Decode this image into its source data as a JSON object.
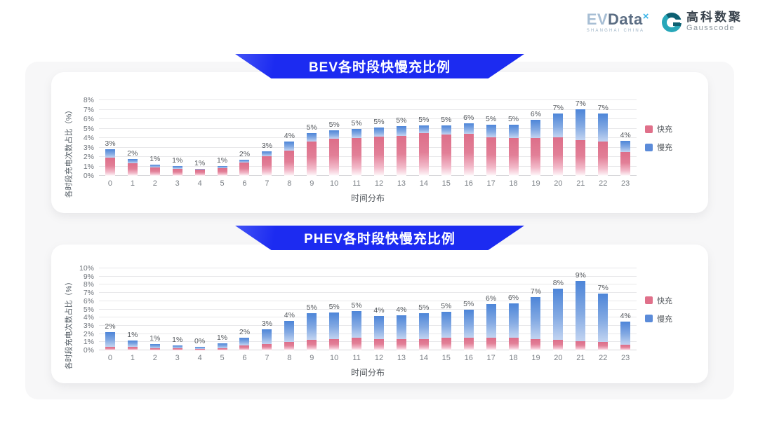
{
  "logo": {
    "evdata_ev": "EV",
    "evdata_data": "Data",
    "evdata_x": "×",
    "evdata_city": "SHANGHAI CHINA",
    "gauss_cn": "高科数聚",
    "gauss_en": "Gausscode"
  },
  "colors": {
    "banner_blue": "#1c2bf1",
    "fast_pink": "#e0708a",
    "slow_blue": "#5b8bd9",
    "panel_gray": "#f7f7f8"
  },
  "chart_data": [
    {
      "type": "bar",
      "stacked": true,
      "title": "BEV各时段快慢充比例",
      "xlabel": "时间分布",
      "ylabel": "各时段充电次数占比（%）",
      "ymax": 8,
      "ytick_suffix": "%",
      "grid": true,
      "legend_position": "right",
      "categories": [
        "0",
        "1",
        "2",
        "3",
        "4",
        "5",
        "6",
        "7",
        "8",
        "9",
        "10",
        "11",
        "12",
        "13",
        "14",
        "15",
        "16",
        "17",
        "18",
        "19",
        "20",
        "21",
        "22",
        "23"
      ],
      "series": [
        {
          "name": "快充",
          "color": "#e0708a",
          "values": [
            1.9,
            1.3,
            0.9,
            0.75,
            0.65,
            0.8,
            1.4,
            2.1,
            2.7,
            3.6,
            3.9,
            4.0,
            4.15,
            4.25,
            4.5,
            4.4,
            4.45,
            4.05,
            4.0,
            4.0,
            4.1,
            3.9,
            3.6,
            2.5
          ]
        },
        {
          "name": "慢充",
          "color": "#5b8bd9",
          "values": [
            0.9,
            0.45,
            0.3,
            0.27,
            0.12,
            0.27,
            0.3,
            0.5,
            0.9,
            0.9,
            0.95,
            0.95,
            0.95,
            1.0,
            0.85,
            0.95,
            1.1,
            1.35,
            1.4,
            1.9,
            2.5,
            3.3,
            3.0,
            1.2
          ]
        }
      ],
      "total_labels": [
        "3%",
        "2%",
        "1%",
        "1%",
        "1%",
        "1%",
        "2%",
        "3%",
        "4%",
        "5%",
        "5%",
        "5%",
        "5%",
        "5%",
        "5%",
        "5%",
        "6%",
        "5%",
        "5%",
        "6%",
        "7%",
        "7%",
        "7%",
        "4%"
      ]
    },
    {
      "type": "bar",
      "stacked": true,
      "title": "PHEV各时段快慢充比例",
      "xlabel": "时间分布",
      "ylabel": "各时段充电次数占比（%）",
      "ymax": 10,
      "ytick_suffix": "%",
      "grid": true,
      "legend_position": "right",
      "categories": [
        "0",
        "1",
        "2",
        "3",
        "4",
        "5",
        "6",
        "7",
        "8",
        "9",
        "10",
        "11",
        "12",
        "13",
        "14",
        "15",
        "16",
        "17",
        "18",
        "19",
        "20",
        "21",
        "22",
        "23"
      ],
      "series": [
        {
          "name": "快充",
          "color": "#e0708a",
          "values": [
            0.45,
            0.4,
            0.3,
            0.25,
            0.2,
            0.3,
            0.6,
            0.8,
            1.0,
            1.3,
            1.4,
            1.5,
            1.4,
            1.4,
            1.4,
            1.5,
            1.5,
            1.5,
            1.5,
            1.4,
            1.3,
            1.1,
            1.0,
            0.7
          ]
        },
        {
          "name": "慢充",
          "color": "#5b8bd9",
          "values": [
            1.75,
            0.8,
            0.5,
            0.35,
            0.25,
            0.55,
            0.9,
            1.8,
            2.6,
            3.2,
            3.2,
            3.3,
            2.8,
            2.9,
            3.1,
            3.2,
            3.5,
            4.1,
            4.2,
            5.1,
            6.2,
            7.4,
            5.9,
            2.8
          ]
        }
      ],
      "total_labels": [
        "2%",
        "1%",
        "1%",
        "1%",
        "0%",
        "1%",
        "2%",
        "3%",
        "4%",
        "5%",
        "5%",
        "5%",
        "4%",
        "4%",
        "5%",
        "5%",
        "5%",
        "6%",
        "6%",
        "7%",
        "8%",
        "9%",
        "7%",
        "4%"
      ]
    }
  ]
}
